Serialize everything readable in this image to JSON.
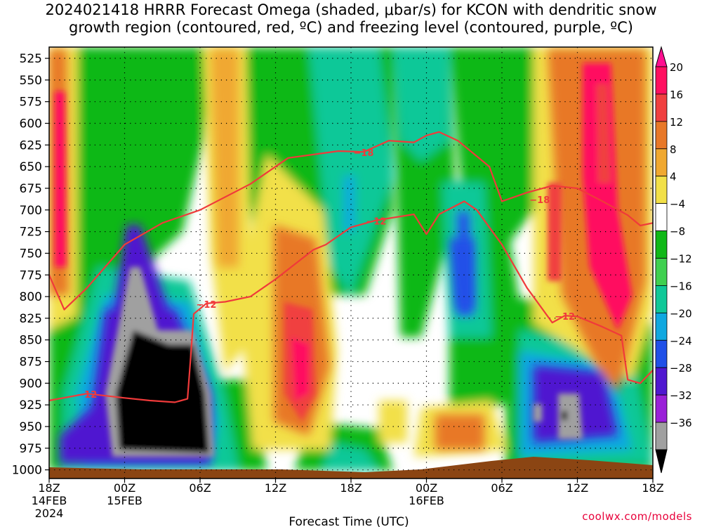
{
  "title": {
    "line1": "2024021418 HRRR Forecast Omega (shaded, μbar/s) for KCON with dendritic snow",
    "line2": "growth region (contoured, red, ºC) and freezing level (contoured, purple, ºC)"
  },
  "credit": "coolwx.com/models",
  "chart_data": {
    "type": "heatmap",
    "xlabel": "Forecast Time (UTC)",
    "ylabel": "",
    "x_range_hours": [
      0,
      48
    ],
    "y_range_mb": [
      1010,
      512
    ],
    "y_ticks": [
      525,
      550,
      575,
      600,
      625,
      650,
      675,
      700,
      725,
      750,
      775,
      800,
      825,
      850,
      875,
      900,
      925,
      950,
      975,
      1000
    ],
    "x_ticks": [
      {
        "h": 0,
        "label": "18Z",
        "date": "14FEB",
        "year": "2024"
      },
      {
        "h": 6,
        "label": "00Z",
        "date": "15FEB",
        "year": ""
      },
      {
        "h": 12,
        "label": "06Z",
        "date": "",
        "year": ""
      },
      {
        "h": 18,
        "label": "12Z",
        "date": "",
        "year": ""
      },
      {
        "h": 24,
        "label": "18Z",
        "date": "",
        "year": ""
      },
      {
        "h": 30,
        "label": "00Z",
        "date": "16FEB",
        "year": ""
      },
      {
        "h": 36,
        "label": "06Z",
        "date": "",
        "year": ""
      },
      {
        "h": 42,
        "label": "12Z",
        "date": "",
        "year": ""
      },
      {
        "h": 48,
        "label": "18Z",
        "date": "",
        "year": ""
      }
    ],
    "grid": true,
    "colorbar": {
      "labels": [
        "20",
        "16",
        "12",
        "8",
        "4",
        "-4",
        "-8",
        "-12",
        "-16",
        "-20",
        "-24",
        "-28",
        "-32",
        "-36"
      ],
      "colors": [
        "#ff1060",
        "#f04040",
        "#e87828",
        "#f0a830",
        "#f2e048",
        "#ffffff",
        "#10b818",
        "#40d050",
        "#10c898",
        "#10a8e0",
        "#2050e8",
        "#5018d0",
        "#9a20d8",
        "#a0a0a0"
      ],
      "top_triangle_color": "#ff1090",
      "bottom_triangle_color": "#000000"
    },
    "contours": [
      {
        "label": "-18",
        "color": "#f03a3a",
        "points": [
          [
            0,
            775
          ],
          [
            1.2,
            815
          ],
          [
            3,
            790
          ],
          [
            6,
            740
          ],
          [
            9,
            715
          ],
          [
            12,
            700
          ],
          [
            16,
            670
          ],
          [
            19,
            640
          ],
          [
            23,
            632
          ],
          [
            25,
            633
          ],
          [
            27,
            620
          ],
          [
            29,
            622
          ],
          [
            30,
            614
          ],
          [
            31,
            610
          ],
          [
            32.5,
            620
          ],
          [
            35,
            650
          ],
          [
            36,
            690
          ],
          [
            38,
            680
          ],
          [
            40,
            672
          ],
          [
            42,
            675
          ],
          [
            44,
            690
          ],
          [
            46,
            706
          ],
          [
            47,
            718
          ],
          [
            48,
            715
          ]
        ],
        "label_positions": [
          [
            25,
            633
          ],
          [
            39,
            687
          ]
        ]
      },
      {
        "label": "-12",
        "color": "#f03a3a",
        "points": [
          [
            0,
            920
          ],
          [
            3,
            912
          ],
          [
            6,
            917
          ],
          [
            8,
            920
          ],
          [
            10,
            922
          ],
          [
            11,
            918
          ],
          [
            11.2,
            880
          ],
          [
            11.5,
            820
          ],
          [
            12.5,
            808
          ],
          [
            14,
            806
          ],
          [
            16,
            800
          ],
          [
            18,
            780
          ],
          [
            21,
            746
          ],
          [
            22,
            740
          ],
          [
            24,
            720
          ],
          [
            26,
            712
          ],
          [
            29,
            705
          ],
          [
            30,
            728
          ],
          [
            31,
            705
          ],
          [
            33,
            690
          ],
          [
            34,
            700
          ],
          [
            36,
            740
          ],
          [
            38,
            790
          ],
          [
            40,
            830
          ],
          [
            41,
            822
          ],
          [
            42,
            823
          ],
          [
            44,
            835
          ],
          [
            45.5,
            845
          ],
          [
            46,
            896
          ],
          [
            47,
            900
          ],
          [
            48,
            885
          ]
        ],
        "label_positions": [
          [
            3,
            912
          ],
          [
            12.5,
            808
          ],
          [
            26,
            712
          ],
          [
            41,
            822
          ]
        ]
      }
    ],
    "terrain_color": "#8b4513"
  }
}
